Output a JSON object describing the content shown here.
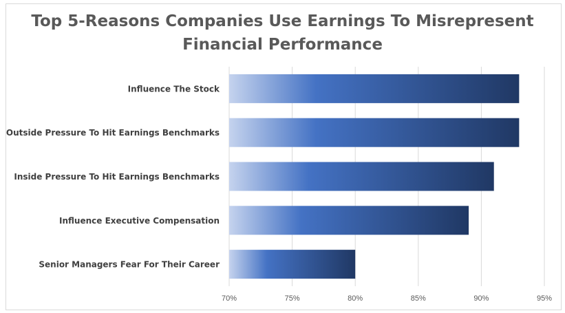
{
  "chart_data": {
    "type": "bar",
    "orientation": "horizontal",
    "title_line1": "Top 5-Reasons Companies Use Earnings To Misrepresent",
    "title_line2": "Financial Performance",
    "categories": [
      "Influence The Stock",
      "Outside Pressure To Hit Earnings Benchmarks",
      "Inside Pressure To Hit Earnings Benchmarks",
      "Influence Executive Compensation",
      "Senior Managers Fear For Their Career"
    ],
    "values": [
      93,
      93,
      91,
      89,
      80
    ],
    "xlim": [
      70,
      95
    ],
    "xticks": [
      "70%",
      "75%",
      "80%",
      "85%",
      "90%",
      "95%"
    ],
    "grid": true,
    "colors": {
      "bar_light": "#c5d3ee",
      "bar_mid": "#4472c4",
      "bar_dark": "#203864",
      "grid": "#d9d9d9",
      "label": "#404040",
      "tick": "#595959"
    }
  }
}
